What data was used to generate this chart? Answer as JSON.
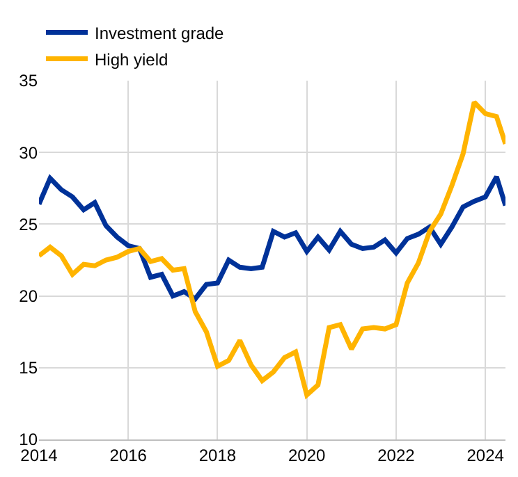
{
  "chart_data": {
    "type": "line",
    "x": [
      2014,
      2014.25,
      2014.5,
      2014.75,
      2015,
      2015.25,
      2015.5,
      2015.75,
      2016,
      2016.25,
      2016.5,
      2016.75,
      2017,
      2017.25,
      2017.5,
      2017.75,
      2018,
      2018.25,
      2018.5,
      2018.75,
      2019,
      2019.25,
      2019.5,
      2019.75,
      2020,
      2020.25,
      2020.5,
      2020.75,
      2021,
      2021.25,
      2021.5,
      2021.75,
      2022,
      2022.25,
      2022.5,
      2022.75,
      2023,
      2023.25,
      2023.5,
      2023.75,
      2024,
      2024.25,
      2024.45
    ],
    "series": [
      {
        "name": "Investment grade",
        "color": "#003299",
        "values": [
          26.4,
          28.2,
          27.4,
          26.9,
          26.0,
          26.5,
          24.9,
          24.1,
          23.5,
          23.3,
          21.3,
          21.5,
          20.0,
          20.3,
          19.8,
          20.8,
          20.9,
          22.5,
          22.0,
          21.9,
          22.0,
          24.5,
          24.1,
          24.4,
          23.1,
          24.1,
          23.2,
          24.5,
          23.6,
          23.3,
          23.4,
          23.9,
          23.0,
          24.0,
          24.3,
          24.8,
          23.6,
          24.8,
          26.2,
          26.6,
          26.9,
          28.3,
          26.3
        ]
      },
      {
        "name": "High yield",
        "color": "#ffb400",
        "values": [
          22.8,
          23.4,
          22.8,
          21.5,
          22.2,
          22.1,
          22.5,
          22.7,
          23.1,
          23.3,
          22.4,
          22.6,
          21.8,
          21.9,
          18.9,
          17.5,
          15.1,
          15.5,
          16.9,
          15.2,
          14.1,
          14.7,
          15.7,
          16.1,
          13.1,
          13.8,
          17.8,
          18.0,
          16.3,
          17.7,
          17.8,
          17.7,
          18.0,
          20.9,
          22.3,
          24.5,
          25.7,
          27.7,
          29.9,
          33.5,
          32.7,
          32.5,
          30.6
        ]
      }
    ],
    "xlim": [
      2014,
      2024.45
    ],
    "xticks": [
      2014,
      2016,
      2018,
      2020,
      2022,
      2024
    ],
    "ylim": [
      10,
      35
    ],
    "yticks": [
      10,
      15,
      20,
      25,
      30,
      35
    ],
    "grid": true,
    "legend": "top left",
    "line_style": "solid",
    "marker": "none"
  }
}
